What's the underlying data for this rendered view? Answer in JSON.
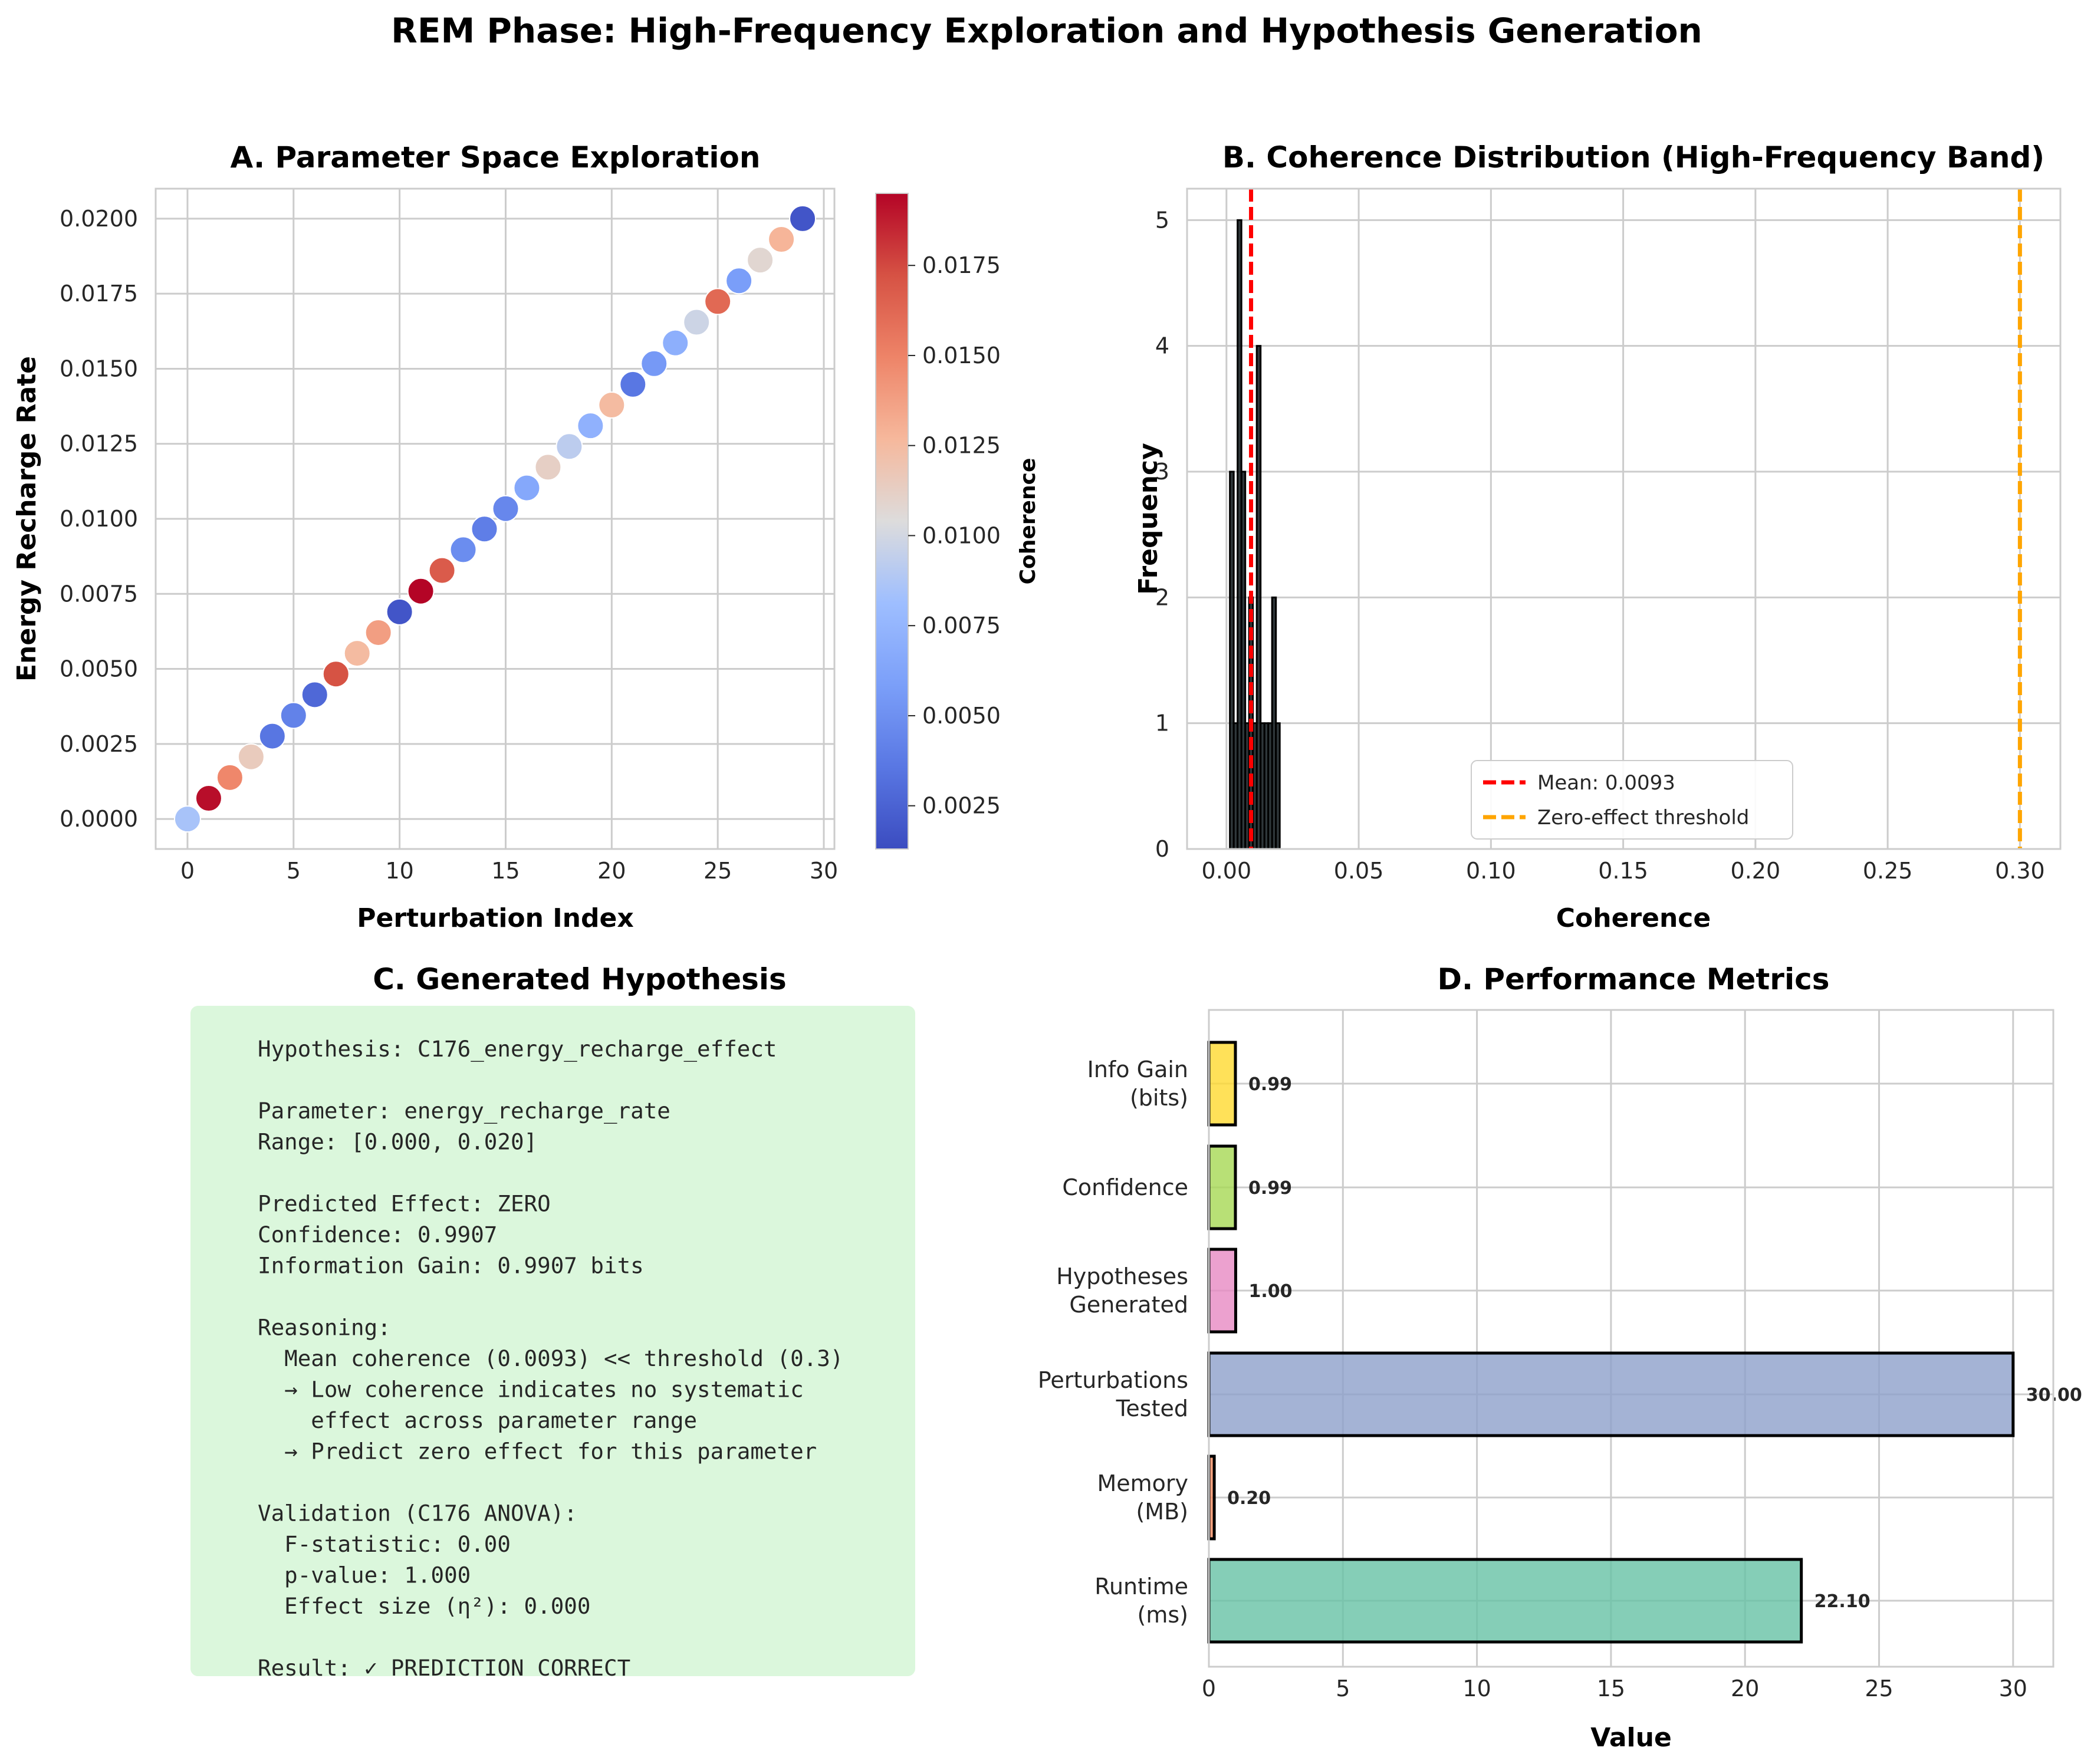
{
  "suptitle": "REM Phase: High-Frequency Exploration and Hypothesis Generation",
  "panels": {
    "a": {
      "title": "A. Parameter Space Exploration"
    },
    "b": {
      "title": "B. Coherence Distribution (High-Frequency Band)"
    },
    "c": {
      "title": "C. Generated Hypothesis"
    },
    "d": {
      "title": "D. Performance Metrics"
    }
  },
  "chart_data": [
    {
      "type": "scatter",
      "title": "A. Parameter Space Exploration",
      "xlabel": "Perturbation Index",
      "ylabel": "Energy Recharge Rate",
      "xlim": [
        -1.5,
        30.5
      ],
      "ylim": [
        -0.001,
        0.021
      ],
      "xticks": [
        0,
        5,
        10,
        15,
        20,
        25,
        30
      ],
      "yticks": [
        0.0,
        0.0025,
        0.005,
        0.0075,
        0.01,
        0.0125,
        0.015,
        0.0175,
        0.02
      ],
      "ytick_labels": [
        "0.0000",
        "0.0025",
        "0.0050",
        "0.0075",
        "0.0100",
        "0.0125",
        "0.0150",
        "0.0175",
        "0.0200"
      ],
      "grid": true,
      "colormap": "coolwarm",
      "colorbar": {
        "label": "Coherence",
        "range": [
          0.0013,
          0.0195
        ],
        "ticks": [
          0.0025,
          0.005,
          0.0075,
          0.01,
          0.0125,
          0.015,
          0.0175
        ],
        "tick_labels": [
          "0.0025",
          "0.0050",
          "0.0075",
          "0.0100",
          "0.0125",
          "0.0150",
          "0.0175"
        ]
      },
      "x": [
        0,
        1,
        2,
        3,
        4,
        5,
        6,
        7,
        8,
        9,
        10,
        11,
        12,
        13,
        14,
        15,
        16,
        17,
        18,
        19,
        20,
        21,
        22,
        23,
        24,
        25,
        26,
        27,
        28,
        29
      ],
      "y": [
        0.0,
        0.00069,
        0.00138,
        0.00207,
        0.00276,
        0.00345,
        0.00414,
        0.00483,
        0.00552,
        0.00621,
        0.0069,
        0.00759,
        0.00828,
        0.00897,
        0.00966,
        0.01034,
        0.01103,
        0.01172,
        0.01241,
        0.0131,
        0.01379,
        0.01448,
        0.01517,
        0.01586,
        0.01655,
        0.01724,
        0.01793,
        0.01862,
        0.01931,
        0.02
      ],
      "coherence": [
        0.0085,
        0.0192,
        0.0148,
        0.0115,
        0.0035,
        0.0042,
        0.0028,
        0.0172,
        0.0125,
        0.0138,
        0.0018,
        0.0195,
        0.0168,
        0.0048,
        0.004,
        0.0045,
        0.0065,
        0.0112,
        0.0092,
        0.0072,
        0.0125,
        0.0036,
        0.0055,
        0.007,
        0.0098,
        0.0162,
        0.0058,
        0.0108,
        0.0128,
        0.0018
      ]
    },
    {
      "type": "bar",
      "subtype": "histogram",
      "title": "B. Coherence Distribution (High-Frequency Band)",
      "xlabel": "Coherence",
      "ylabel": "Frequency",
      "xlim": [
        -0.0149,
        0.3153
      ],
      "ylim": [
        0,
        5.25
      ],
      "xticks": [
        0.0,
        0.05,
        0.1,
        0.15,
        0.2,
        0.25,
        0.3
      ],
      "xtick_labels": [
        "0.00",
        "0.05",
        "0.10",
        "0.15",
        "0.20",
        "0.25",
        "0.30"
      ],
      "yticks": [
        0,
        1,
        2,
        3,
        4,
        5
      ],
      "grid": true,
      "bin_width": 0.00145,
      "bins": [
        {
          "left": 0.0013,
          "count": 3
        },
        {
          "left": 0.00275,
          "count": 1
        },
        {
          "left": 0.0042,
          "count": 5
        },
        {
          "left": 0.00565,
          "count": 3
        },
        {
          "left": 0.0071,
          "count": 1
        },
        {
          "left": 0.00855,
          "count": 2
        },
        {
          "left": 0.01,
          "count": 1
        },
        {
          "left": 0.01145,
          "count": 4
        },
        {
          "left": 0.0129,
          "count": 1
        },
        {
          "left": 0.01435,
          "count": 1
        },
        {
          "left": 0.0158,
          "count": 1
        },
        {
          "left": 0.01725,
          "count": 2
        },
        {
          "left": 0.0187,
          "count": 1
        }
      ],
      "lines": [
        {
          "x": 0.0093,
          "label": "Mean: 0.0093",
          "color": "#ff0000"
        },
        {
          "x": 0.3,
          "label": "Zero-effect threshold",
          "color": "#ffa500"
        }
      ],
      "legend": "lower-center"
    },
    {
      "type": "bar",
      "orientation": "horizontal",
      "title": "D. Performance Metrics",
      "xlabel": "Value",
      "xlim": [
        0,
        31.5
      ],
      "xticks": [
        0,
        5,
        10,
        15,
        20,
        25,
        30
      ],
      "grid": true,
      "categories": [
        [
          "Runtime",
          "(ms)"
        ],
        [
          "Memory",
          "(MB)"
        ],
        [
          "Perturbations",
          "Tested"
        ],
        [
          "Hypotheses",
          "Generated"
        ],
        [
          "Confidence"
        ],
        [
          "Info Gain",
          "(bits)"
        ]
      ],
      "values": [
        22.1,
        0.2,
        30.0,
        1.0,
        0.99,
        0.99
      ],
      "value_labels": [
        "22.10",
        "0.20",
        "30.00",
        "1.00",
        "0.99",
        "0.99"
      ],
      "colors": [
        "#66c2a5",
        "#fc8d62",
        "#8da0cb",
        "#e78ac3",
        "#a6d854",
        "#ffd92f"
      ]
    }
  ],
  "hypothesis_lines": [
    "Hypothesis: C176_energy_recharge_effect",
    "",
    "Parameter: energy_recharge_rate",
    "Range: [0.000, 0.020]",
    "",
    "Predicted Effect: ZERO",
    "Confidence: 0.9907",
    "Information Gain: 0.9907 bits",
    "",
    "Reasoning:",
    "  Mean coherence (0.0093) << threshold (0.3)",
    "  → Low coherence indicates no systematic",
    "    effect across parameter range",
    "  → Predict zero effect for this parameter",
    "",
    "Validation (C176 ANOVA):",
    "  F-statistic: 0.00",
    "  p-value: 1.000",
    "  Effect size (η²): 0.000",
    "",
    "Result: ✓ PREDICTION CORRECT"
  ],
  "colors": {
    "hypothesis_box": "#dbf7dc",
    "grid": "#cccccc",
    "spine": "#cccccc"
  }
}
